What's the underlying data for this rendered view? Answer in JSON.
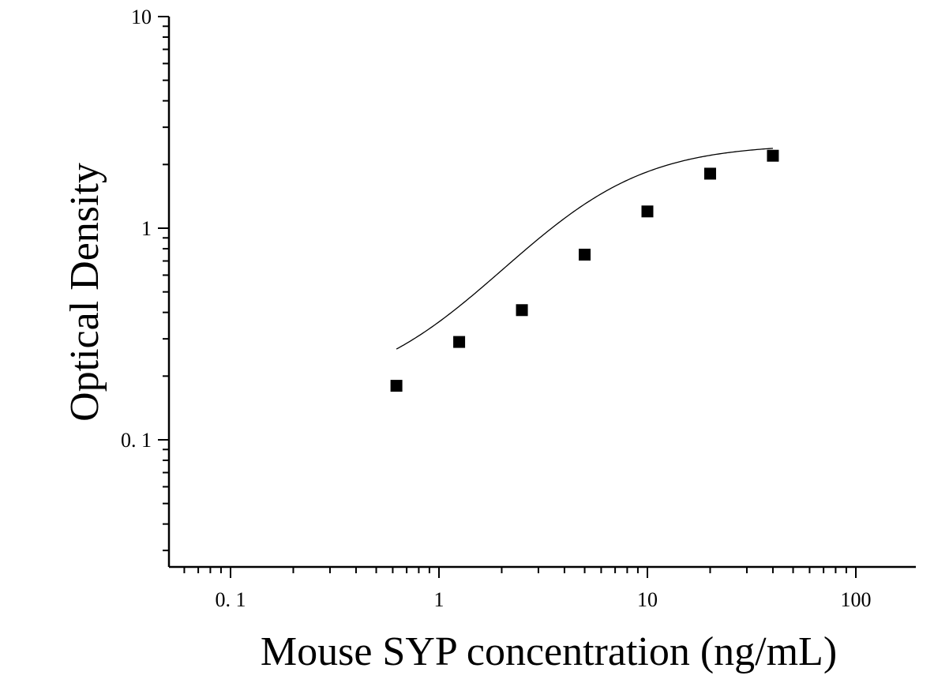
{
  "chart_data": {
    "type": "scatter",
    "xlabel": "Mouse SYP concentration (ng/mL)",
    "ylabel": "Optical Density",
    "x_scale": "log",
    "y_scale": "log",
    "xlim": [
      0.05,
      200
    ],
    "ylim": [
      0.02,
      10
    ],
    "x_tick_labels": [
      "0. 1",
      "1",
      "10",
      "100"
    ],
    "x_tick_values": [
      0.1,
      1,
      10,
      100
    ],
    "y_tick_labels": [
      "0. 1",
      "1",
      "10"
    ],
    "y_tick_values": [
      0.1,
      1,
      10
    ],
    "grid": false,
    "marker": "square",
    "colors": {
      "marker": "#000000",
      "curve": "#000000",
      "axis": "#000000"
    },
    "series": [
      {
        "x": [
          0.625,
          1.25,
          2.5,
          5,
          10,
          20,
          40
        ],
        "y": [
          0.18,
          0.29,
          0.41,
          0.75,
          1.2,
          1.81,
          2.2
        ]
      }
    ],
    "fit_curve": {
      "type": "4PL",
      "bottom": 0.165,
      "top": 2.5,
      "ec50": 5.2,
      "hill": 1.45,
      "x_range": [
        0.625,
        40
      ]
    }
  }
}
